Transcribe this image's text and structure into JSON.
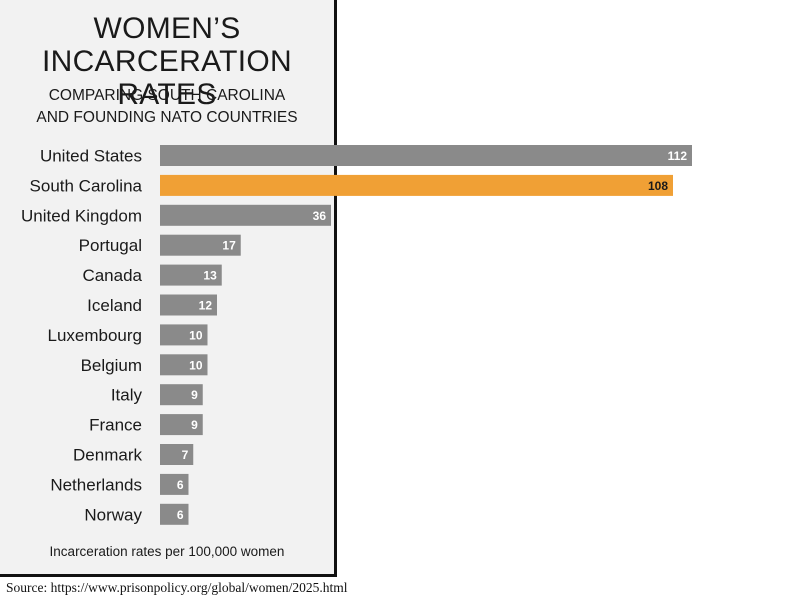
{
  "chart_data": {
    "type": "bar",
    "orientation": "horizontal",
    "title": "WOMEN’S INCARCERATION RATES",
    "title_lines": [
      "WOMEN’S",
      "INCARCERATION RATES"
    ],
    "subtitle_lines": [
      "COMPARING SOUTH CAROLINA",
      "AND FOUNDING NATO COUNTRIES"
    ],
    "categories": [
      "United States",
      "South Carolina",
      "United Kingdom",
      "Portugal",
      "Canada",
      "Iceland",
      "Luxembourg",
      "Belgium",
      "Italy",
      "France",
      "Denmark",
      "Netherlands",
      "Norway"
    ],
    "values": [
      112,
      108,
      36,
      17,
      13,
      12,
      10,
      10,
      9,
      9,
      7,
      6,
      6
    ],
    "highlight": "South Carolina",
    "colors": {
      "default": "#8a8a8a",
      "highlight": "#f0a035",
      "label_default": "#ffffff",
      "label_highlight": "#1a1a1a"
    },
    "xlim": [
      0,
      112
    ],
    "grid": false,
    "legend": "none",
    "caption": "Incarceration rates per 100,000 women"
  },
  "source": "Source: https://www.prisonpolicy.org/global/women/2025.html"
}
